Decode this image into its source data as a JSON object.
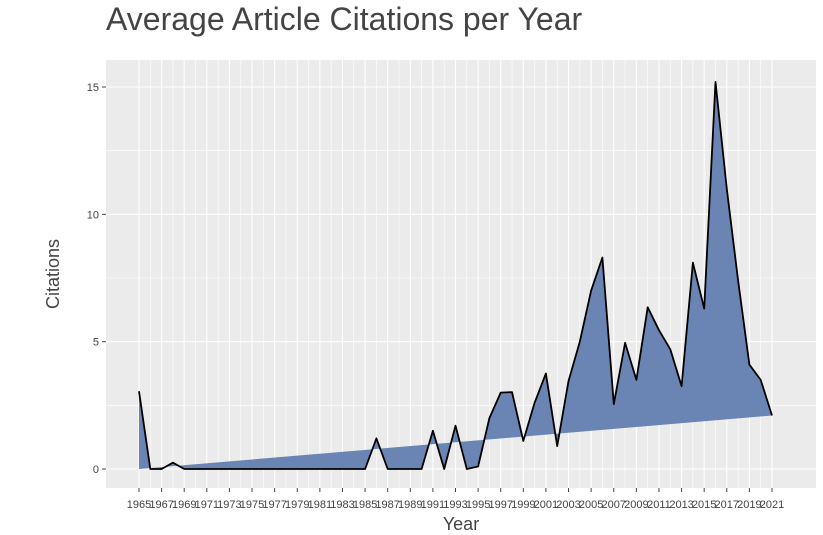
{
  "chart_data": {
    "type": "area",
    "title": "Average Article Citations per Year",
    "xlabel": "Year",
    "ylabel": "Citations",
    "x": [
      1965,
      1966,
      1967,
      1968,
      1969,
      1985,
      1986,
      1987,
      1989,
      1990,
      1991,
      1992,
      1993,
      1994,
      1995,
      1996,
      1997,
      1998,
      1999,
      2000,
      2001,
      2002,
      2003,
      2004,
      2005,
      2006,
      2007,
      2008,
      2009,
      2010,
      2011,
      2012,
      2013,
      2014,
      2015,
      2016,
      2017,
      2018,
      2019,
      2020,
      2021
    ],
    "values": [
      3.05,
      0,
      0,
      0.25,
      0,
      0,
      1.2,
      0,
      0,
      0,
      1.5,
      0,
      1.7,
      0,
      0.1,
      2.0,
      3.0,
      3.02,
      1.1,
      2.6,
      3.75,
      0.9,
      3.45,
      5.0,
      7.0,
      8.3,
      2.55,
      4.95,
      3.5,
      6.35,
      5.45,
      4.7,
      3.25,
      8.1,
      6.3,
      15.2,
      11.0,
      7.4,
      4.1,
      3.5,
      2.1
    ],
    "x_ticks": [
      "1965",
      "1967",
      "1969",
      "1971",
      "1973",
      "1975",
      "1977",
      "1979",
      "1981",
      "1983",
      "1985",
      "1987",
      "1989",
      "1991",
      "1993",
      "1995",
      "1997",
      "1999",
      "2001",
      "2003",
      "2005",
      "2007",
      "2009",
      "2011",
      "2013",
      "2015",
      "2017",
      "2019",
      "2021"
    ],
    "y_ticks": [
      "0",
      "5",
      "10",
      "15"
    ],
    "xlim": [
      1965,
      2021
    ],
    "ylim": [
      0,
      16
    ],
    "grid": true,
    "legend": "none",
    "colors": {
      "fill": "#6a84b3",
      "line": "#000000",
      "panel": "#ebebeb",
      "grid": "#ffffff"
    }
  }
}
